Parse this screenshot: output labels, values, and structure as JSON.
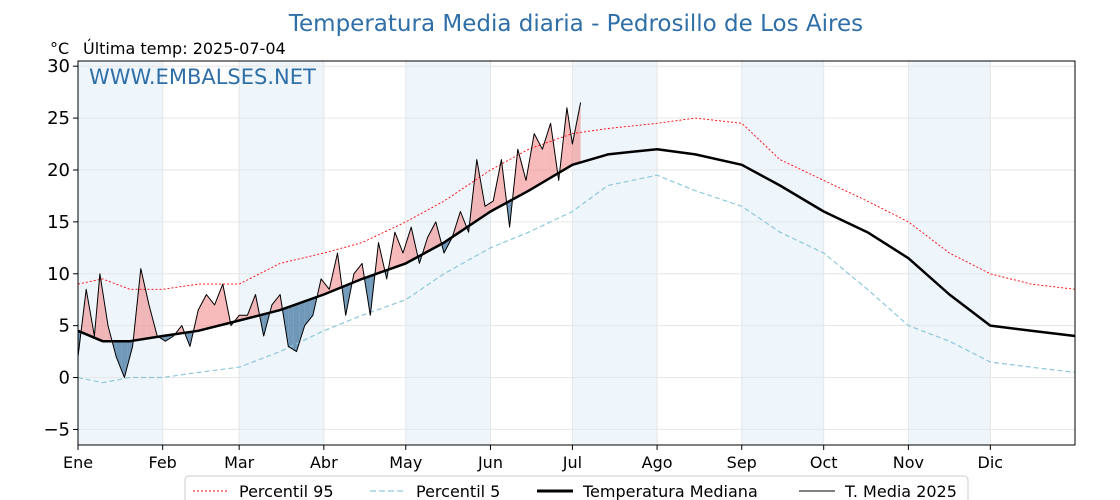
{
  "title": "Temperatura Media diaria - Pedrosillo de Los Aires",
  "unit_label": "°C",
  "last_temp_label": "Última temp: 2025-07-04",
  "watermark": "WWW.EMBALSES.NET",
  "colors": {
    "title": "#2f6fa7",
    "p95": "#ff0000",
    "p5": "#8ec8dc",
    "median": "#000000",
    "current": "#000000",
    "above_fill": "#f08080",
    "below_fill": "#4f7fa8",
    "band": "#eef5fb"
  },
  "chart_data": {
    "type": "line",
    "title": "Temperatura Media diaria - Pedrosillo de Los Aires",
    "xlabel": "",
    "ylabel": "°C",
    "xlim": [
      1,
      366
    ],
    "ylim": [
      -6.5,
      30.5
    ],
    "yticks": [
      -5,
      0,
      5,
      10,
      15,
      20,
      25,
      30
    ],
    "month_labels": [
      "Ene",
      "Feb",
      "Mar",
      "Abr",
      "May",
      "Jun",
      "Jul",
      "Ago",
      "Sep",
      "Oct",
      "Nov",
      "Dic"
    ],
    "month_start_days": [
      1,
      32,
      60,
      91,
      121,
      152,
      182,
      213,
      244,
      274,
      305,
      335
    ],
    "legend": [
      "Percentil 95",
      "Percentil 5",
      "Temperatura Mediana",
      "T. Media 2025"
    ],
    "legend_position": "bottom-center",
    "shaded_months": [
      "Ene",
      "Mar",
      "May",
      "Jul",
      "Sep",
      "Nov"
    ],
    "series": [
      {
        "name": "Percentil 95",
        "style": "dotted-red",
        "x": [
          1,
          10,
          20,
          32,
          45,
          60,
          75,
          91,
          105,
          121,
          135,
          152,
          166,
          182,
          195,
          213,
          227,
          244,
          258,
          274,
          290,
          305,
          320,
          335,
          350,
          366
        ],
        "values": [
          9,
          9.5,
          8.5,
          8.5,
          9,
          9,
          11,
          12,
          13,
          15,
          17,
          20,
          22,
          23.5,
          24,
          24.5,
          25,
          24.5,
          21,
          19,
          17,
          15,
          12,
          10,
          9,
          8.5
        ]
      },
      {
        "name": "Percentil 5",
        "style": "dashed-lightblue",
        "x": [
          1,
          10,
          20,
          32,
          45,
          60,
          75,
          91,
          105,
          121,
          135,
          152,
          166,
          182,
          195,
          213,
          227,
          244,
          258,
          274,
          290,
          305,
          320,
          335,
          350,
          366
        ],
        "values": [
          0,
          -0.5,
          0,
          0,
          0.5,
          1,
          2.5,
          4.5,
          6,
          7.5,
          10,
          12.5,
          14,
          16,
          18.5,
          19.5,
          18,
          16.5,
          14,
          12,
          8.5,
          5,
          3.5,
          1.5,
          1,
          0.5
        ]
      },
      {
        "name": "Temperatura Mediana",
        "style": "solid-black-thick",
        "x": [
          1,
          10,
          20,
          32,
          45,
          60,
          75,
          91,
          105,
          121,
          135,
          152,
          166,
          182,
          195,
          213,
          227,
          244,
          258,
          274,
          290,
          305,
          320,
          335,
          350,
          366
        ],
        "values": [
          4.5,
          3.5,
          3.5,
          4,
          4.5,
          5.5,
          6.5,
          8,
          9.5,
          11,
          13,
          16,
          18,
          20.5,
          21.5,
          22,
          21.5,
          20.5,
          18.5,
          16,
          14,
          11.5,
          8,
          5,
          4.5,
          4
        ]
      },
      {
        "name": "T. Media 2025",
        "style": "solid-black-thin",
        "x": [
          1,
          4,
          7,
          9,
          12,
          15,
          18,
          21,
          24,
          27,
          30,
          33,
          36,
          39,
          42,
          45,
          48,
          51,
          54,
          57,
          60,
          63,
          66,
          69,
          72,
          75,
          78,
          81,
          84,
          87,
          90,
          93,
          96,
          99,
          102,
          105,
          108,
          111,
          114,
          117,
          120,
          123,
          126,
          129,
          132,
          135,
          138,
          141,
          144,
          147,
          150,
          153,
          156,
          159,
          162,
          165,
          168,
          171,
          174,
          177,
          180,
          182,
          185
        ],
        "values": [
          2,
          8.5,
          4,
          10,
          5,
          2,
          0,
          3,
          10.5,
          7,
          4,
          3.5,
          4,
          5,
          3,
          6.5,
          8,
          7,
          9,
          5,
          6,
          6,
          8,
          4,
          7,
          8,
          3,
          2.5,
          5,
          6,
          9.5,
          8.5,
          12,
          6,
          10,
          11,
          6,
          13,
          9.5,
          14,
          12,
          14.5,
          11,
          13.5,
          15,
          12,
          13.5,
          16,
          14,
          21,
          16.5,
          17,
          21,
          14.5,
          22,
          19,
          23.5,
          22,
          24.5,
          19,
          26,
          22.5,
          26.5
        ]
      }
    ]
  }
}
